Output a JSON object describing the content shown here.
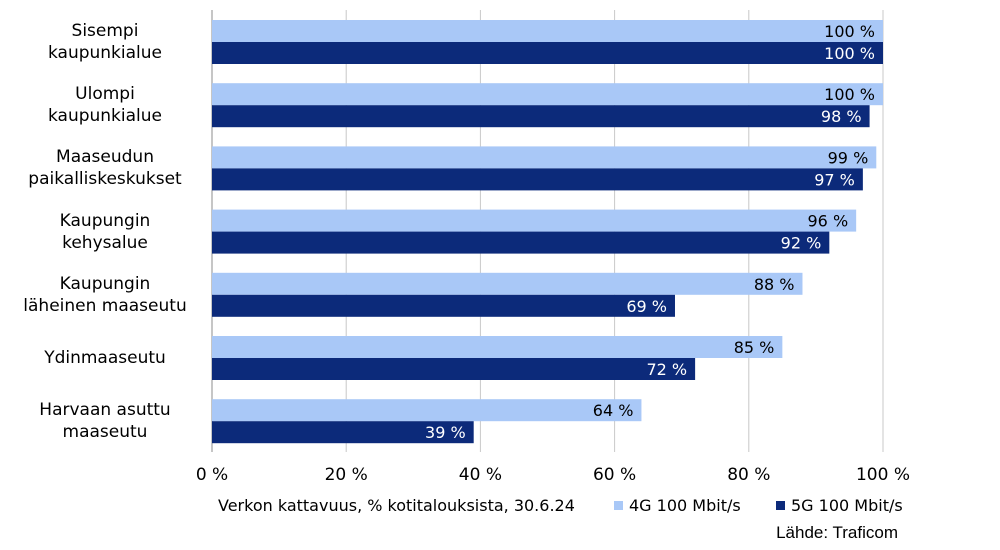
{
  "chart_data": {
    "type": "bar",
    "orientation": "horizontal",
    "categories": [
      [
        "Sisempi",
        "kaupunkialue"
      ],
      [
        "Ulompi",
        "kaupunkialue"
      ],
      [
        "Maaseudun",
        "paikalliskeskukset"
      ],
      [
        "Kaupungin",
        "kehysalue"
      ],
      [
        "Kaupungin",
        "läheinen maaseutu"
      ],
      [
        "Ydinmaaseutu"
      ],
      [
        "Harvaan asuttu",
        "maaseutu"
      ]
    ],
    "series": [
      {
        "name": "4G 100 Mbit/s",
        "color": "#a9c8f7",
        "values": [
          100,
          100,
          99,
          96,
          88,
          85,
          64
        ],
        "labels": [
          "100 %",
          "100 %",
          "99 %",
          "96 %",
          "88 %",
          "85 %",
          "64 %"
        ]
      },
      {
        "name": "5G 100 Mbit/s",
        "color": "#0c2a7a",
        "values": [
          100,
          98,
          97,
          92,
          69,
          72,
          39
        ],
        "labels": [
          "100 %",
          "98 %",
          "97 %",
          "92 %",
          "69 %",
          "72 %",
          "39 %"
        ]
      }
    ],
    "xlim": [
      0,
      100
    ],
    "xticks": [
      0,
      20,
      40,
      60,
      80,
      100
    ],
    "xtick_labels": [
      "0 %",
      "20 %",
      "40 %",
      "60 %",
      "80 %",
      "100 %"
    ],
    "xlabel": "Verkon kattavuus, % kotitalouksista, 30.6.24",
    "grid": true,
    "legend": "bottom-right"
  },
  "source": "Lähde: Traficom"
}
